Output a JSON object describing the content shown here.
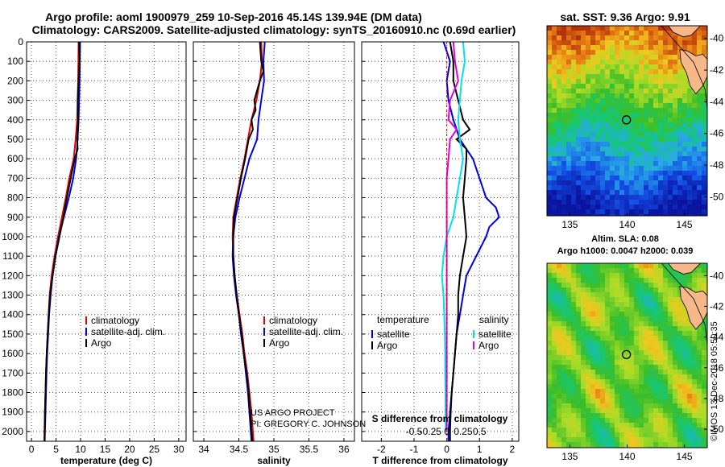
{
  "title_line1": "Argo profile: aoml 1900979_259 10-Sep-2016 45.14S 139.94E (DM data)",
  "title_line2": "Climatology: CARS2009. Satellite-adjusted climatology: synTS_20160910.nc (0.69d earlier)",
  "map1_title": "sat. SST: 9.36 Argo: 9.91",
  "map2_title1": "Altim. SLA: 0.08",
  "map2_title2": "Argo h1000: 0.0047 h2000: 0.039",
  "project_line1": "US ARGO PROJECT",
  "project_line2": "PI: GREGORY C. JOHNSON",
  "imos_stamp": "©IMOS 13-Dec-2018 05:50:35",
  "legend_a": {
    "climatology": "climatology",
    "satellite": "satellite-adj. clim.",
    "argo": "Argo"
  },
  "legend_c": {
    "temperature": "temperature",
    "salinity": "salinity",
    "satellite": "satellite",
    "argo": "Argo"
  },
  "colors": {
    "climatology": "#e00000",
    "satellite": "#0000e0",
    "argo": "#000000",
    "t_sat": "#0000e0",
    "s_sat": "#00e0f0",
    "s_argo": "#e000e0"
  },
  "chart_data": [
    {
      "type": "line",
      "xlabel": "temperature (deg C)",
      "ylim": [
        2050,
        0
      ],
      "xlim": [
        -1,
        31.5
      ],
      "xticks": [
        0,
        5,
        10,
        15,
        20,
        25,
        30
      ],
      "yticks": [
        0,
        100,
        200,
        300,
        400,
        500,
        600,
        700,
        800,
        900,
        1000,
        1100,
        1200,
        1300,
        1400,
        1500,
        1600,
        1700,
        1800,
        1900,
        2000
      ],
      "ytick_labels": [
        "0",
        "100",
        "200",
        "300",
        "400",
        "500",
        "600",
        "700",
        "800",
        "900",
        "1000",
        "1100",
        "1200",
        "1300",
        "1400",
        "1500",
        "1600",
        "1700",
        "1800",
        "1900",
        "2000"
      ],
      "series": [
        {
          "name": "climatology",
          "depth": [
            0,
            200,
            400,
            500,
            600,
            700,
            800,
            900,
            1000,
            1100,
            1200,
            1300,
            1400,
            1500,
            1600,
            1700,
            1800,
            1900,
            2000,
            2050
          ],
          "values": [
            9.6,
            9.5,
            9.3,
            9.0,
            8.6,
            7.7,
            7.0,
            6.2,
            5.4,
            4.7,
            4.1,
            3.7,
            3.5,
            3.3,
            3.1,
            2.95,
            2.85,
            2.75,
            2.65,
            2.6
          ]
        },
        {
          "name": "satellite-adj. clim.",
          "depth": [
            0,
            200,
            400,
            500,
            600,
            700,
            800,
            900,
            1000,
            1100,
            1200,
            1300,
            1400,
            1500,
            1600,
            1700,
            1800,
            1900,
            2000,
            2050
          ],
          "values": [
            9.9,
            9.8,
            9.6,
            9.4,
            9.1,
            8.5,
            7.6,
            6.6,
            5.6,
            4.9,
            4.3,
            3.9,
            3.6,
            3.4,
            3.2,
            3.05,
            2.95,
            2.85,
            2.75,
            2.7
          ]
        },
        {
          "name": "Argo",
          "depth": [
            0,
            100,
            200,
            300,
            400,
            500,
            550,
            600,
            700,
            800,
            900,
            1000,
            1100,
            1200,
            1300,
            1400,
            1500,
            1600,
            1700,
            1800,
            1900,
            2000,
            2050
          ],
          "values": [
            9.7,
            9.8,
            9.6,
            9.4,
            9.5,
            9.3,
            9.4,
            8.8,
            8.0,
            7.2,
            6.5,
            5.7,
            4.9,
            4.3,
            3.8,
            3.5,
            3.3,
            3.1,
            2.95,
            2.85,
            2.75,
            2.7,
            2.7
          ]
        }
      ]
    },
    {
      "type": "line",
      "xlabel": "salinity",
      "ylim": [
        2050,
        0
      ],
      "xlim": [
        33.85,
        36.15
      ],
      "xticks": [
        34,
        34.5,
        35,
        35.5,
        36
      ],
      "xtick_labels": [
        "34",
        "34.5",
        "35",
        "35.5",
        "36"
      ],
      "series": [
        {
          "name": "climatology",
          "depth": [
            0,
            100,
            200,
            300,
            400,
            500,
            600,
            700,
            800,
            900,
            1000,
            1100,
            1200,
            1300,
            1400,
            1500,
            1600,
            1700,
            1800,
            1900,
            2000,
            2050
          ],
          "values": [
            34.82,
            34.83,
            34.8,
            34.75,
            34.68,
            34.63,
            34.58,
            34.52,
            34.47,
            34.42,
            34.41,
            34.42,
            34.44,
            34.47,
            34.51,
            34.55,
            34.58,
            34.62,
            34.65,
            34.68,
            34.7,
            34.71
          ]
        },
        {
          "name": "satellite-adj. clim.",
          "depth": [
            0,
            100,
            200,
            300,
            400,
            500,
            600,
            700,
            800,
            900,
            1000,
            1100,
            1200,
            1300,
            1400,
            1500,
            1600,
            1700,
            1800,
            1900,
            2000,
            2050
          ],
          "values": [
            34.87,
            34.85,
            34.86,
            34.82,
            34.78,
            34.76,
            34.65,
            34.58,
            34.51,
            34.45,
            34.42,
            34.41,
            34.43,
            34.46,
            34.5,
            34.53,
            34.57,
            34.6,
            34.63,
            34.65,
            34.67,
            34.68
          ]
        },
        {
          "name": "Argo",
          "depth": [
            0,
            100,
            150,
            200,
            250,
            300,
            350,
            400,
            450,
            500,
            600,
            700,
            800,
            900,
            1000,
            1100,
            1200,
            1300,
            1400,
            1500,
            1600,
            1700,
            1800,
            1900,
            2000,
            2050
          ],
          "values": [
            34.8,
            34.82,
            34.85,
            34.8,
            34.76,
            34.72,
            34.74,
            34.68,
            34.7,
            34.64,
            34.59,
            34.53,
            34.48,
            34.43,
            34.42,
            34.42,
            34.44,
            34.47,
            34.5,
            34.54,
            34.57,
            34.61,
            34.64,
            34.66,
            34.68,
            34.69
          ]
        }
      ]
    },
    {
      "type": "line",
      "xlabel": "T difference from climatology",
      "xlabel_top": "S difference from climatology",
      "ylim": [
        2050,
        0
      ],
      "xlim": [
        -2.6,
        2.2
      ],
      "xticks": [
        -2,
        -1,
        0,
        1,
        2
      ],
      "xtick_labels": [
        "-2",
        "-1",
        "0",
        "1",
        "2"
      ],
      "xticks_top": [
        -1.0,
        -0.5,
        0,
        0.5,
        1.0
      ],
      "xtick_top_labels": [
        "-0.5",
        "-0.25",
        "0",
        "0.25",
        "0.5"
      ],
      "series": [
        {
          "name": "temperature satellite",
          "depth": [
            0,
            100,
            200,
            300,
            400,
            500,
            600,
            700,
            800,
            850,
            900,
            950,
            1000,
            1100,
            1200,
            1300,
            1400,
            1500,
            1600,
            1700,
            1800,
            1900,
            2000,
            2050
          ],
          "values": [
            -0.1,
            0.1,
            0.0,
            0.05,
            0.2,
            0.4,
            0.8,
            1.0,
            1.2,
            1.5,
            1.6,
            1.3,
            1.2,
            0.9,
            0.6,
            0.5,
            0.4,
            0.3,
            0.25,
            0.2,
            0.15,
            0.1,
            0.05,
            0.05
          ]
        },
        {
          "name": "temperature Argo",
          "depth": [
            0,
            100,
            200,
            300,
            400,
            450,
            500,
            550,
            600,
            700,
            800,
            900,
            1000,
            1100,
            1200,
            1300,
            1400,
            1500,
            1600,
            1700,
            1800,
            1900,
            2000,
            2050
          ],
          "values": [
            0.1,
            0.2,
            0.2,
            0.35,
            0.5,
            0.7,
            0.3,
            0.6,
            0.6,
            0.55,
            0.5,
            0.55,
            0.6,
            0.5,
            0.4,
            0.35,
            0.35,
            0.3,
            0.25,
            0.2,
            0.15,
            0.12,
            0.1,
            0.1
          ]
        },
        {
          "name": "salinity satellite",
          "depth": [
            0,
            100,
            200,
            300,
            400,
            500,
            600,
            700,
            800,
            900,
            1000,
            1100,
            1200,
            1300,
            1400,
            1500,
            1600,
            1700,
            1800,
            1900,
            2000
          ],
          "values": [
            0.5,
            0.55,
            0.45,
            0.4,
            0.35,
            0.4,
            0.5,
            0.4,
            0.3,
            0.2,
            0.0,
            -0.1,
            -0.15,
            -0.1,
            -0.08,
            -0.06,
            -0.05,
            -0.05,
            -0.04,
            -0.04,
            -0.03
          ]
        },
        {
          "name": "salinity Argo",
          "depth": [
            0,
            100,
            200,
            300,
            400,
            450,
            500,
            600,
            700,
            800,
            900,
            1000,
            1100,
            1200,
            1300,
            1400,
            1500,
            1600,
            1700,
            1800,
            1900,
            2000
          ],
          "values": [
            0.2,
            0.25,
            0.35,
            0.1,
            0.05,
            0.3,
            0.1,
            0.05,
            0.0,
            0.0,
            0.0,
            0.0,
            0.0,
            0.0,
            0.0,
            0.0,
            0.0,
            0.0,
            0.0,
            0.0,
            0.0,
            0.0
          ]
        }
      ]
    },
    {
      "type": "heatmap",
      "title": "sat. SST: 9.36 Argo: 9.91",
      "xticks": [
        135,
        140,
        145
      ],
      "yticks": [
        -40,
        -42,
        -44,
        -46,
        -48,
        -50
      ],
      "xlim": [
        133,
        147
      ],
      "ylim": [
        -51.2,
        -39.2
      ],
      "marker": {
        "lon": 139.94,
        "lat": -45.14
      }
    },
    {
      "type": "heatmap",
      "title": "Altim. SLA: 0.08",
      "xticks": [
        135,
        140,
        145
      ],
      "yticks": [
        -40,
        -42,
        -44,
        -46,
        -48,
        -50
      ],
      "xlim": [
        133,
        147
      ],
      "ylim": [
        -51.2,
        -39.2
      ],
      "marker": {
        "lon": 139.94,
        "lat": -45.14
      }
    }
  ]
}
